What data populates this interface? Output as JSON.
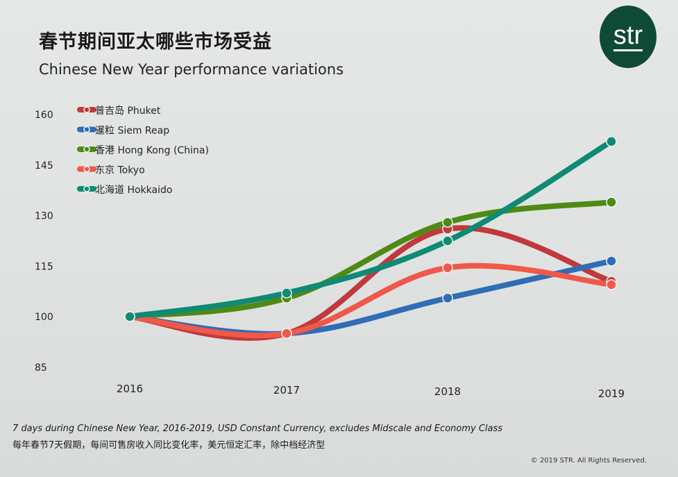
{
  "title_cn": "春节期间亚太哪些市场受益",
  "logo_text": "str",
  "footnote_en": "7 days during Chinese New Year, 2016-2019, USD Constant Currency, excludes Midscale and Economy Class",
  "footnote_cn": "每年春节7天假期，每间可售房收入同比变化率，美元恒定汇率，除中档经济型",
  "copyright": "© 2019 STR. All Rights Reserved.",
  "chart_data": {
    "type": "line",
    "title": "Chinese New Year performance variations",
    "xlabel": "",
    "ylabel": "",
    "categories": [
      "2016",
      "2017",
      "2018",
      "2019"
    ],
    "yticks": [
      85,
      100,
      115,
      130,
      145,
      160
    ],
    "ylim": [
      85,
      160
    ],
    "grid": false,
    "legend_position": "top-left",
    "series": [
      {
        "name": "普吉岛 Phuket",
        "color": "#c0393b",
        "values": [
          100,
          95,
          126,
          110.5
        ]
      },
      {
        "name": "暹粒 Siem Reap",
        "color": "#2f6db5",
        "values": [
          100,
          95,
          105.5,
          116.5
        ]
      },
      {
        "name": "香港 Hong Kong (China)",
        "color": "#4f8a14",
        "values": [
          100,
          105.5,
          128,
          134
        ]
      },
      {
        "name": "东京 Tokyo",
        "color": "#f0584a",
        "values": [
          100,
          95,
          114.5,
          109.5
        ]
      },
      {
        "name": "北海道 Hokkaido",
        "color": "#0f8a74",
        "values": [
          100,
          107,
          122.5,
          152
        ]
      }
    ]
  }
}
